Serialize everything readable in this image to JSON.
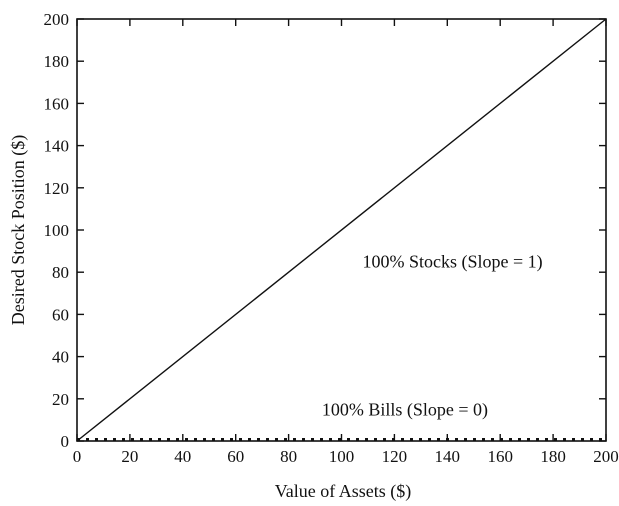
{
  "chart_data": {
    "type": "line",
    "title": "",
    "xlabel": "Value of Assets ($)",
    "ylabel": "Desired Stock Position ($)",
    "xlim": [
      0,
      200
    ],
    "ylim": [
      0,
      200
    ],
    "xticks": [
      0,
      20,
      40,
      60,
      80,
      100,
      120,
      140,
      160,
      180,
      200
    ],
    "yticks": [
      0,
      20,
      40,
      60,
      80,
      100,
      120,
      140,
      160,
      180,
      200
    ],
    "grid": false,
    "series": [
      {
        "name": "100% Stocks (Slope = 1)",
        "style": "solid",
        "x": [
          0,
          200
        ],
        "y": [
          0,
          200
        ]
      },
      {
        "name": "100% Bills (Slope = 0)",
        "style": "dotted",
        "x": [
          0,
          200
        ],
        "y": [
          0,
          0
        ]
      }
    ],
    "annotations": [
      {
        "text": "100% Stocks (Slope = 1)",
        "x": 142,
        "y": 85
      },
      {
        "text": "100% Bills (Slope = 0)",
        "x": 124,
        "y": 15
      }
    ]
  }
}
